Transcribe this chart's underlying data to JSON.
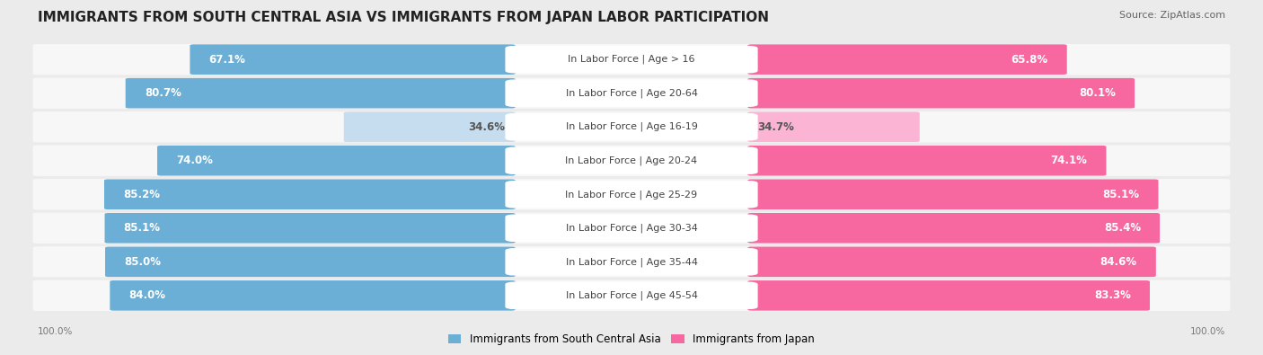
{
  "title": "IMMIGRANTS FROM SOUTH CENTRAL ASIA VS IMMIGRANTS FROM JAPAN LABOR PARTICIPATION",
  "source": "Source: ZipAtlas.com",
  "categories": [
    "In Labor Force | Age > 16",
    "In Labor Force | Age 20-64",
    "In Labor Force | Age 16-19",
    "In Labor Force | Age 20-24",
    "In Labor Force | Age 25-29",
    "In Labor Force | Age 30-34",
    "In Labor Force | Age 35-44",
    "In Labor Force | Age 45-54"
  ],
  "south_central_asia": [
    67.1,
    80.7,
    34.6,
    74.0,
    85.2,
    85.1,
    85.0,
    84.0
  ],
  "japan": [
    65.8,
    80.1,
    34.7,
    74.1,
    85.1,
    85.4,
    84.6,
    83.3
  ],
  "color_asia": "#6baed6",
  "color_asia_light": "#c6dcef",
  "color_japan": "#f768a1",
  "color_japan_light": "#fbb4d4",
  "background_color": "#ebebeb",
  "row_bg_color": "#f7f7f7",
  "label_color_white": "#ffffff",
  "label_color_dark": "#555555",
  "center_label_bg": "#ffffff",
  "center_label_color": "#444444",
  "legend_label_asia": "Immigrants from South Central Asia",
  "legend_label_japan": "Immigrants from Japan",
  "title_fontsize": 11,
  "source_fontsize": 8,
  "bar_label_fontsize": 8.5,
  "cat_label_fontsize": 8,
  "max_value": 100.0,
  "threshold_light": 50.0
}
